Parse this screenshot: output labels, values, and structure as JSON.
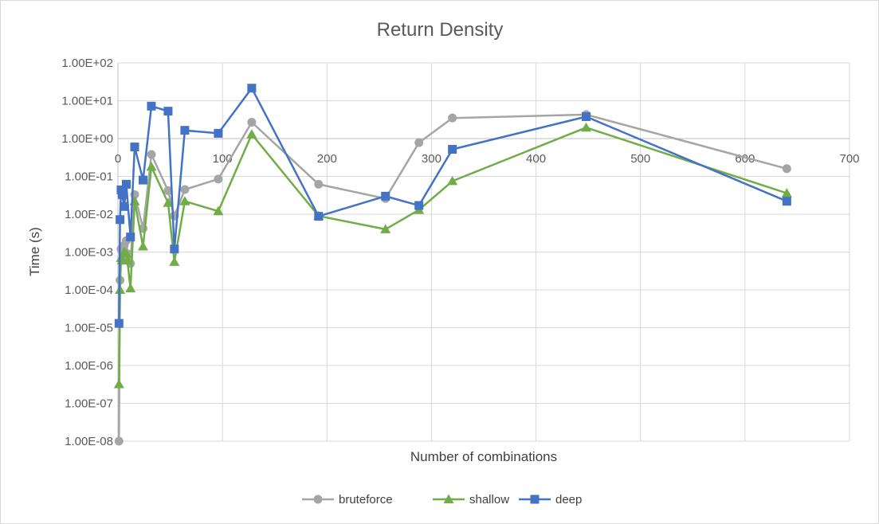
{
  "chart_data": {
    "type": "scatter",
    "title": "Return Density",
    "xlabel": "Number of combinations",
    "ylabel": "Time (s)",
    "xlim": [
      0,
      700
    ],
    "ylim": [
      1e-08,
      100
    ],
    "y_scale": "log",
    "grid": true,
    "legend_position": "bottom",
    "x_ticks": [
      "0",
      "100",
      "200",
      "300",
      "400",
      "500",
      "600",
      "700"
    ],
    "y_ticks": [
      "1.00E+02",
      "1.00E+01",
      "1.00E+00",
      "1.00E-01",
      "1.00E-02",
      "1.00E-03",
      "1.00E-04",
      "1.00E-05",
      "1.00E-06",
      "1.00E-07",
      "1.00E-08"
    ],
    "series": [
      {
        "name": "bruteforce",
        "color": "#a5a5a5",
        "marker": "circle",
        "x": [
          1,
          2,
          3,
          4,
          6,
          8,
          9,
          12,
          16,
          24,
          32,
          48,
          54,
          64,
          96,
          128,
          192,
          256,
          288,
          320,
          448,
          640
        ],
        "y": [
          1e-08,
          0.00018,
          0.0012,
          0.0006,
          0.0015,
          0.002,
          0.0009,
          0.0005,
          0.033,
          0.0042,
          0.38,
          0.042,
          0.009,
          0.045,
          0.085,
          2.7,
          0.062,
          0.026,
          0.78,
          3.5,
          4.3,
          0.16
        ]
      },
      {
        "name": "shallow",
        "color": "#70ad47",
        "marker": "triangle",
        "x": [
          1,
          2,
          3,
          4,
          6,
          8,
          9,
          12,
          16,
          24,
          32,
          48,
          54,
          64,
          96,
          128,
          192,
          256,
          288,
          320,
          448,
          640
        ],
        "y": [
          3.2e-07,
          0.0001,
          0.0007,
          0.0006,
          0.001,
          0.0009,
          0.0006,
          0.00011,
          0.022,
          0.0014,
          0.18,
          0.02,
          0.00055,
          0.022,
          0.012,
          1.3,
          0.009,
          0.004,
          0.013,
          0.075,
          1.95,
          0.036
        ]
      },
      {
        "name": "deep",
        "color": "#4472c4",
        "marker": "square",
        "x": [
          1,
          2,
          3,
          4,
          6,
          8,
          12,
          16,
          24,
          32,
          48,
          54,
          64,
          96,
          128,
          192,
          256,
          288,
          320,
          448,
          640
        ],
        "y": [
          1.3e-05,
          0.0072,
          0.044,
          0.033,
          0.016,
          0.062,
          0.0025,
          0.6,
          0.08,
          7.2,
          5.3,
          0.0012,
          1.65,
          1.38,
          21.5,
          0.0088,
          0.03,
          0.017,
          0.52,
          3.8,
          0.022
        ]
      }
    ]
  }
}
